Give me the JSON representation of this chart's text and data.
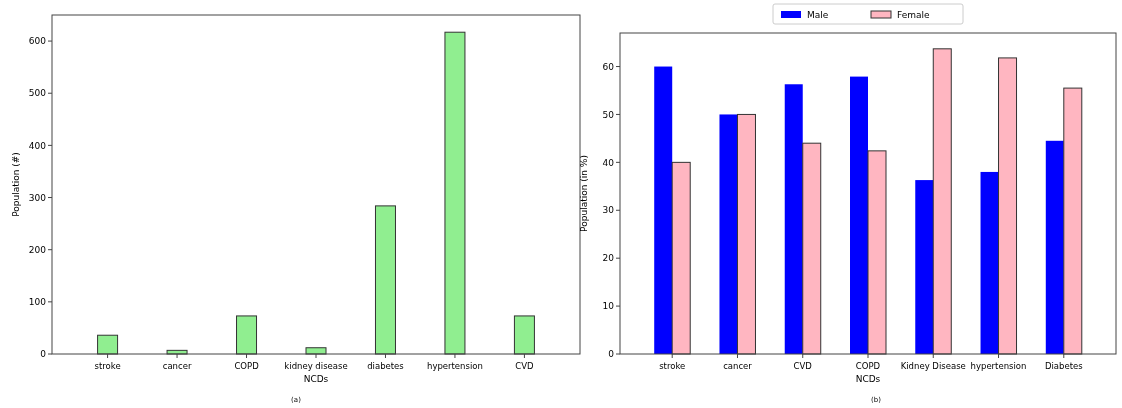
{
  "chart_data": [
    {
      "type": "bar",
      "xlabel": "NCDs",
      "ylabel": "Population (#)",
      "categories": [
        "stroke",
        "cancer",
        "COPD",
        "kidney disease",
        "diabetes",
        "hypertension",
        "CVD"
      ],
      "series": [
        {
          "color": "#90ee90",
          "values": [
            36,
            7,
            73,
            12,
            284,
            617,
            73
          ]
        }
      ],
      "ylim": [
        0,
        650
      ],
      "yticks": [
        0,
        100,
        200,
        300,
        400,
        500,
        600
      ],
      "grid": false,
      "legend": false,
      "annotations": [
        "(a)"
      ]
    },
    {
      "type": "bar",
      "xlabel": "NCDs",
      "ylabel": "Population (in %)",
      "categories": [
        "stroke",
        "cancer",
        "CVD",
        "COPD",
        "Kidney Disease",
        "hypertension",
        "Diabetes"
      ],
      "series": [
        {
          "name": "Male",
          "color": "#0000ff",
          "values": [
            60,
            50,
            56.3,
            57.9,
            36.3,
            38,
            44.5
          ]
        },
        {
          "name": "Female",
          "color": "#ffb6c1",
          "values": [
            40,
            50,
            44,
            42.4,
            63.7,
            61.8,
            55.5
          ]
        }
      ],
      "ylim": [
        0,
        67
      ],
      "yticks": [
        0,
        10,
        20,
        30,
        40,
        50,
        60
      ],
      "grid": false,
      "legend": "top",
      "annotations": [
        "(b)"
      ]
    }
  ]
}
